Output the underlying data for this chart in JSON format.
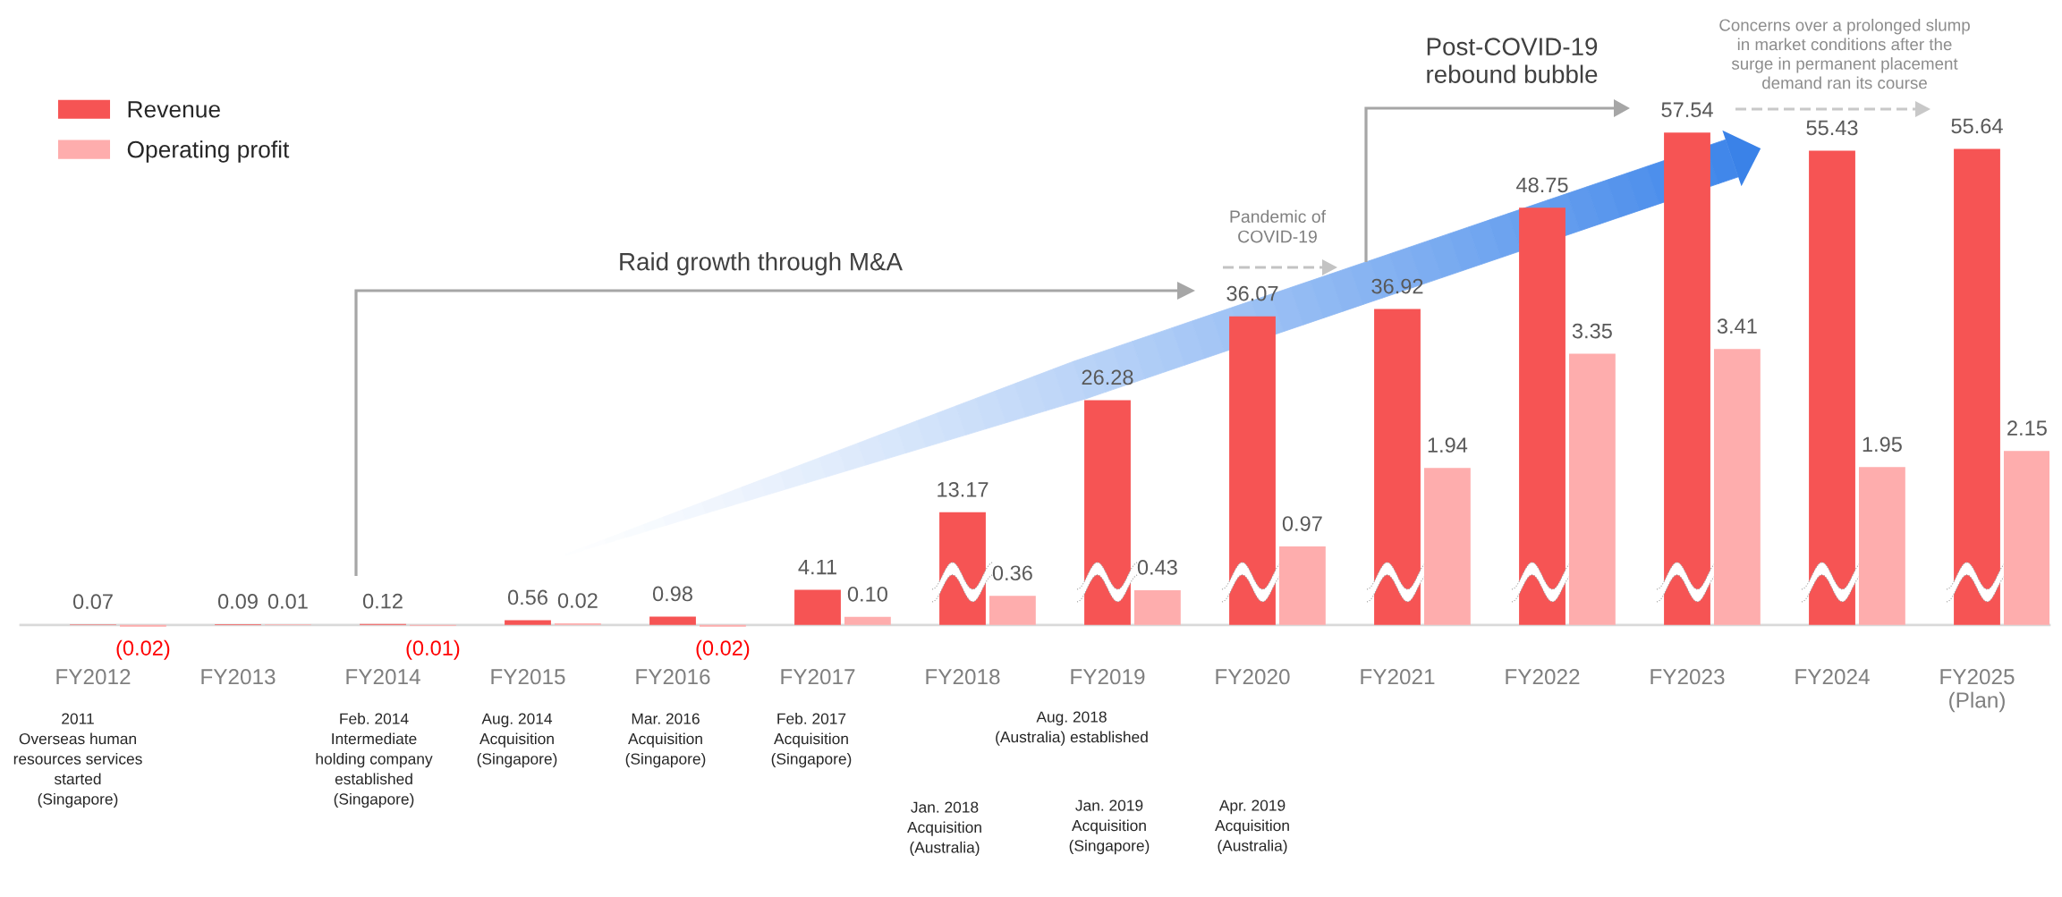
{
  "chart_data": {
    "type": "bar",
    "categories": [
      "FY2012",
      "FY2013",
      "FY2014",
      "FY2015",
      "FY2016",
      "FY2017",
      "FY2018",
      "FY2019",
      "FY2020",
      "FY2021",
      "FY2022",
      "FY2023",
      "FY2024",
      "FY2025\n(Plan)"
    ],
    "series": [
      {
        "name": "Revenue",
        "color": "#f65454",
        "values": [
          0.07,
          0.09,
          0.12,
          0.56,
          0.98,
          4.11,
          13.17,
          26.28,
          36.07,
          36.92,
          48.75,
          57.54,
          55.43,
          55.64
        ],
        "value_labels": [
          "0.07",
          "0.09",
          "0.12",
          "0.56",
          "0.98",
          "4.11",
          "13.17",
          "26.28",
          "36.07",
          "36.92",
          "48.75",
          "57.54",
          "55.43",
          "55.64"
        ]
      },
      {
        "name": "Operating profit",
        "color": "#feadad",
        "axis": "y2",
        "values": [
          -0.02,
          0.01,
          -0.01,
          0.02,
          -0.02,
          0.1,
          0.36,
          0.43,
          0.97,
          1.94,
          3.35,
          3.41,
          1.95,
          2.15
        ],
        "value_labels": [
          "(0.02)",
          "0.01",
          "(0.01)",
          "0.02",
          "(0.02)",
          "0.10",
          "0.36",
          "0.43",
          "0.97",
          "1.94",
          "3.35",
          "3.41",
          "1.95",
          "2.15"
        ]
      }
    ],
    "tick_labels": "x",
    "legend": "top left",
    "annotations": [
      "Raid growth through M&A",
      "Pandemic of\nCOVID-19",
      "Post-COVID-19\nrebound bubble",
      "Concerns over a prolonged slump\nin market conditions after the\nsurge in permanent placement\ndemand ran its course",
      "2011\nOverseas human\nresources services\nstarted\n(Singapore)",
      "Feb. 2014\nIntermediate\nholding company\nestablished\n(Singapore)",
      "Aug. 2014\nAcquisition\n(Singapore)",
      "Mar. 2016\nAcquisition\n(Singapore)",
      "Feb. 2017\nAcquisition\n(Singapore)",
      "Aug. 2018\n(Australia) established",
      "Jan. 2018\nAcquisition\n(Australia)",
      "Jan. 2019\nAcquisition\n(Singapore)",
      "Apr. 2019\nAcquisition\n(Australia)"
    ]
  }
}
